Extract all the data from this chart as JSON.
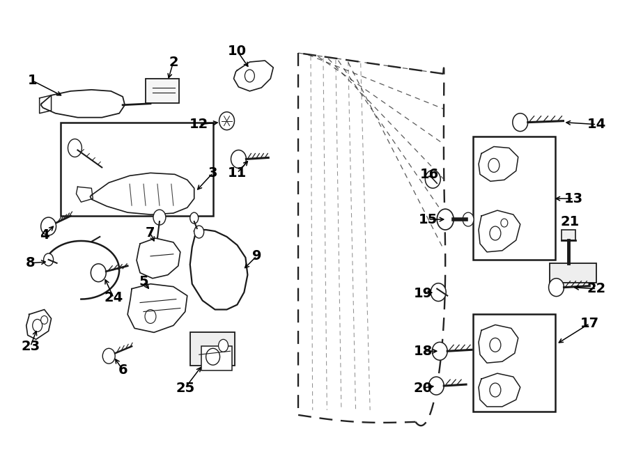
{
  "bg": "#ffffff",
  "fg": "#1a1a1a",
  "fig_w": 9.0,
  "fig_h": 6.62,
  "dpi": 100
}
